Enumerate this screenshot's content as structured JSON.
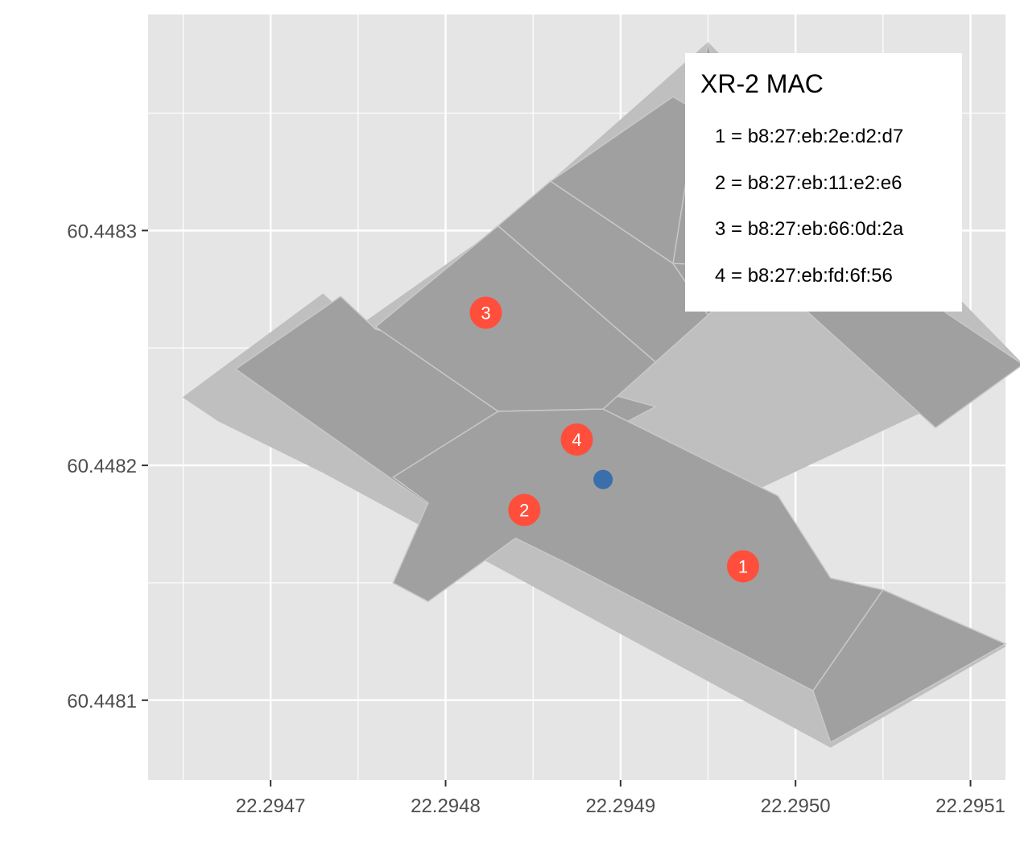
{
  "chart_data": {
    "type": "scatter",
    "title": "",
    "xlabel": "",
    "ylabel": "",
    "xlim": [
      22.29463,
      22.29512
    ],
    "ylim": [
      60.448066,
      60.448392
    ],
    "x_ticks": [
      {
        "value": 22.2947,
        "label": "22.2947"
      },
      {
        "value": 22.2948,
        "label": "22.2948"
      },
      {
        "value": 22.2949,
        "label": "22.2949"
      },
      {
        "value": 22.295,
        "label": "22.2950"
      },
      {
        "value": 22.2951,
        "label": "22.2951"
      }
    ],
    "y_ticks": [
      {
        "value": 60.4481,
        "label": "60.4481"
      },
      {
        "value": 60.4482,
        "label": "60.4482"
      },
      {
        "value": 60.4483,
        "label": "60.4483"
      }
    ],
    "grid": true,
    "colors": {
      "panel": "#e5e5e5",
      "grid": "#ffffff",
      "building_light": "#bfbfbf",
      "building_dark": "#a0a0a0",
      "room_edge": "#c8c8c8",
      "beacon": "#ff4f3c",
      "estimate": "#3a6fab"
    },
    "building_outline": [
      [
        22.29465,
        60.448229
      ],
      [
        22.29473,
        60.448273
      ],
      [
        22.29475,
        60.448259
      ],
      [
        22.29483,
        60.448301
      ],
      [
        22.29495,
        60.44838
      ],
      [
        22.29513,
        60.448243
      ],
      [
        22.29497,
        60.448187
      ],
      [
        22.29502,
        60.44815
      ],
      [
        22.29512,
        60.448123
      ],
      [
        22.29502,
        60.44808
      ],
      [
        22.29473,
        60.448197
      ],
      [
        22.29467,
        60.448219
      ]
    ],
    "rooms": [
      [
        [
          22.29474,
          60.448272
        ],
        [
          22.29468,
          60.448241
        ],
        [
          22.2948,
          60.448178
        ],
        [
          22.29492,
          60.448225
        ],
        [
          22.29476,
          60.448258
        ]
      ],
      [
        [
          22.29476,
          60.448259
        ],
        [
          22.29483,
          60.448302
        ],
        [
          22.29492,
          60.448244
        ],
        [
          22.29489,
          60.448224
        ],
        [
          22.29483,
          60.448223
        ]
      ],
      [
        [
          22.29483,
          60.448302
        ],
        [
          22.29486,
          60.448321
        ],
        [
          22.29493,
          60.448286
        ],
        [
          22.29495,
          60.448264
        ],
        [
          22.29492,
          60.448244
        ]
      ],
      [
        [
          22.29486,
          60.448321
        ],
        [
          22.29493,
          60.448357
        ],
        [
          22.295,
          60.448326
        ],
        [
          22.295,
          60.448302
        ],
        [
          22.29495,
          60.448264
        ],
        [
          22.29493,
          60.448286
        ]
      ],
      [
        [
          22.29483,
          60.448223
        ],
        [
          22.29489,
          60.448224
        ],
        [
          22.29499,
          60.448187
        ],
        [
          22.29502,
          60.448152
        ],
        [
          22.29505,
          60.448147
        ],
        [
          22.29501,
          60.448104
        ],
        [
          22.29487,
          60.448158
        ],
        [
          22.29484,
          60.448169
        ],
        [
          22.29479,
          60.448142
        ],
        [
          22.29477,
          60.44815
        ],
        [
          22.29479,
          60.448184
        ],
        [
          22.29477,
          60.448195
        ]
      ],
      [
        [
          22.29505,
          60.448147
        ],
        [
          22.29512,
          60.448124
        ],
        [
          22.29502,
          60.448082
        ],
        [
          22.29501,
          60.448104
        ]
      ],
      [
        [
          22.29495,
          60.44838
        ],
        [
          22.29496,
          60.448345
        ],
        [
          22.29505,
          60.448283
        ],
        [
          22.29513,
          60.448243
        ],
        [
          22.29508,
          60.448216
        ],
        [
          22.295,
          60.44827
        ],
        [
          22.29496,
          60.448285
        ],
        [
          22.29493,
          60.448286
        ]
      ]
    ],
    "beacons": [
      {
        "id": "1",
        "x": 22.29497,
        "y": 60.448157
      },
      {
        "id": "2",
        "x": 22.294845,
        "y": 60.448181
      },
      {
        "id": "3",
        "x": 22.294823,
        "y": 60.448265
      },
      {
        "id": "4",
        "x": 22.294875,
        "y": 60.448211
      }
    ],
    "estimate": {
      "x": 22.29489,
      "y": 60.448194
    },
    "legend": {
      "placement": "top-right",
      "title": "XR-2 MAC",
      "entries": [
        "1 = b8:27:eb:2e:d2:d7",
        "2 = b8:27:eb:11:e2:e6",
        "3 = b8:27:eb:66:0d:2a",
        "4 = b8:27:eb:fd:6f:56"
      ]
    }
  }
}
